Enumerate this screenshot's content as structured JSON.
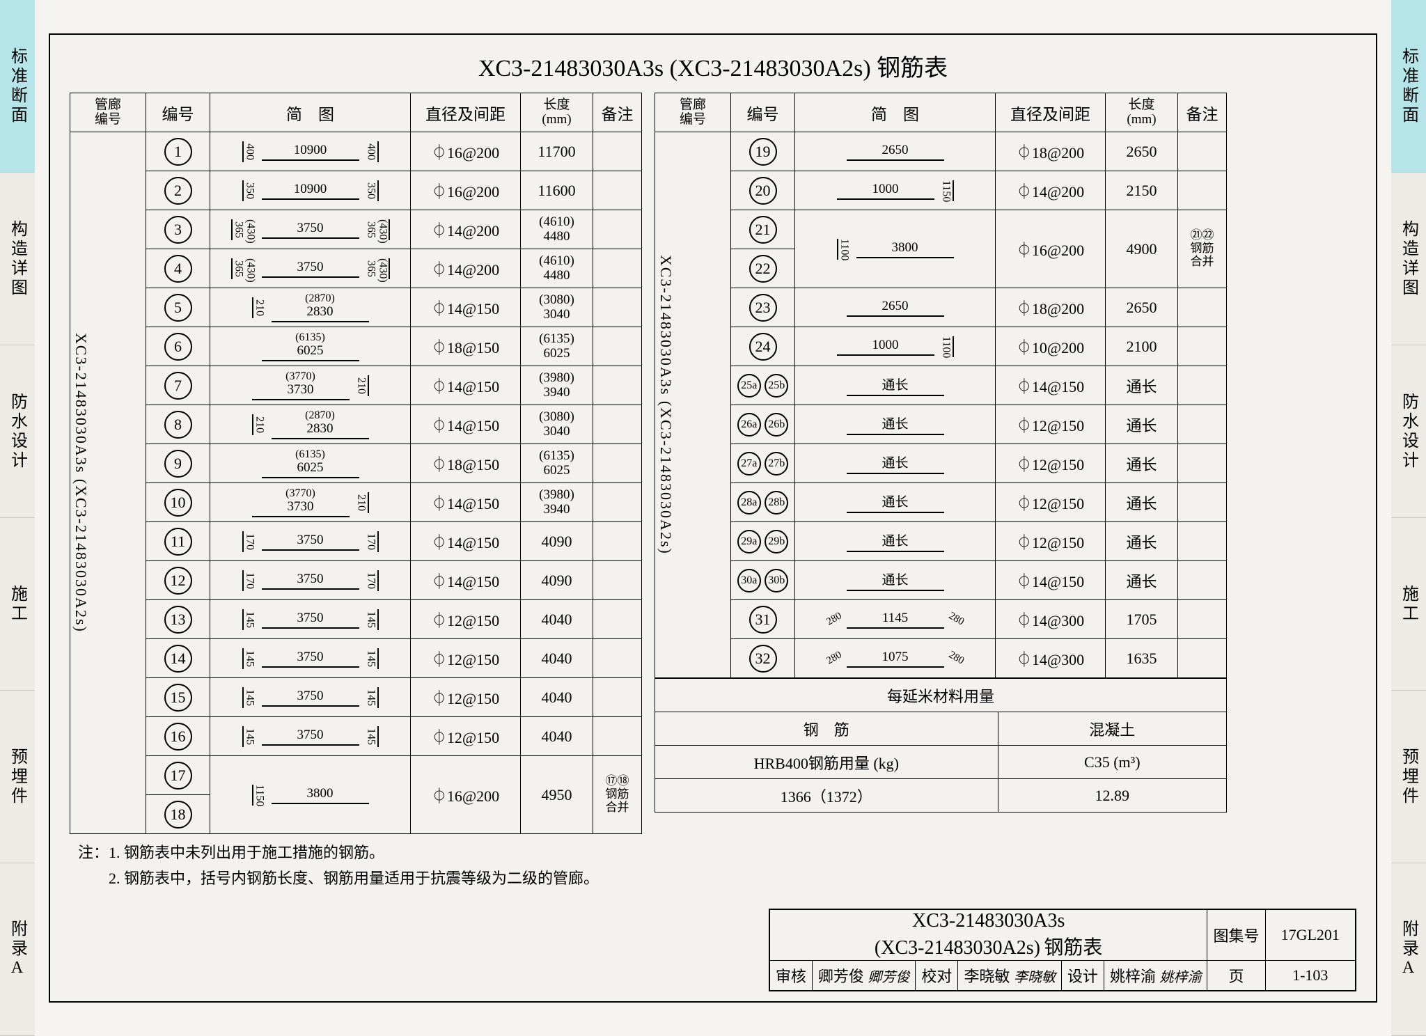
{
  "tabs": [
    "标准断面",
    "构造详图",
    "防水设计",
    "施工",
    "预埋件",
    "附录A"
  ],
  "title": "XC3-21483030A3s (XC3-21483030A2s) 钢筋表",
  "headers": {
    "corridor": "管廊编号",
    "num": "编号",
    "diagram": "简　图",
    "spec": "直径及间距",
    "len": "长度(mm)",
    "note": "备注"
  },
  "corridorLabel": "XC3-21483030A3s (XC3-21483030A2s)",
  "left_rows": [
    {
      "n": "1",
      "diag": {
        "main": "10900",
        "l": "400",
        "r": "400"
      },
      "spec": "⏀16@200",
      "len": "11700"
    },
    {
      "n": "2",
      "diag": {
        "main": "10900",
        "l": "350",
        "r": "350"
      },
      "spec": "⏀16@200",
      "len": "11600"
    },
    {
      "n": "3",
      "diag": {
        "main": "3750",
        "l": "365",
        "r": "365",
        "lx": "(430)",
        "rx": "(430)"
      },
      "spec": "⏀14@200",
      "len": "(4610)\n4480"
    },
    {
      "n": "4",
      "diag": {
        "main": "3750",
        "l": "365",
        "r": "365",
        "lx": "(430)",
        "rx": "(430)"
      },
      "spec": "⏀14@200",
      "len": "(4610)\n4480"
    },
    {
      "n": "5",
      "diag": {
        "above": "(2870)",
        "main": "2830",
        "l": "210"
      },
      "spec": "⏀14@150",
      "len": "(3080)\n3040"
    },
    {
      "n": "6",
      "diag": {
        "above": "(6135)",
        "main": "6025"
      },
      "spec": "⏀18@150",
      "len": "(6135)\n6025"
    },
    {
      "n": "7",
      "diag": {
        "above": "(3770)",
        "main": "3730",
        "r": "210"
      },
      "spec": "⏀14@150",
      "len": "(3980)\n3940"
    },
    {
      "n": "8",
      "diag": {
        "above": "(2870)",
        "main": "2830",
        "l": "210"
      },
      "spec": "⏀14@150",
      "len": "(3080)\n3040"
    },
    {
      "n": "9",
      "diag": {
        "above": "(6135)",
        "main": "6025"
      },
      "spec": "⏀18@150",
      "len": "(6135)\n6025"
    },
    {
      "n": "10",
      "diag": {
        "above": "(3770)",
        "main": "3730",
        "r": "210"
      },
      "spec": "⏀14@150",
      "len": "(3980)\n3940"
    },
    {
      "n": "11",
      "diag": {
        "main": "3750",
        "l": "170",
        "r": "170"
      },
      "spec": "⏀14@150",
      "len": "4090"
    },
    {
      "n": "12",
      "diag": {
        "main": "3750",
        "l": "170",
        "r": "170"
      },
      "spec": "⏀14@150",
      "len": "4090"
    },
    {
      "n": "13",
      "diag": {
        "main": "3750",
        "l": "145",
        "r": "145"
      },
      "spec": "⏀12@150",
      "len": "4040"
    },
    {
      "n": "14",
      "diag": {
        "main": "3750",
        "l": "145",
        "r": "145"
      },
      "spec": "⏀12@150",
      "len": "4040"
    },
    {
      "n": "15",
      "diag": {
        "main": "3750",
        "l": "145",
        "r": "145"
      },
      "spec": "⏀12@150",
      "len": "4040"
    },
    {
      "n": "16",
      "diag": {
        "main": "3750",
        "l": "145",
        "r": "145"
      },
      "spec": "⏀12@150",
      "len": "4040"
    }
  ],
  "left_merged": {
    "nums": [
      "17",
      "18"
    ],
    "diag": {
      "main": "3800",
      "l": "1150"
    },
    "spec": "⏀16@200",
    "len": "4950",
    "note": "⑰⑱\n钢筋\n合并"
  },
  "right_rows": [
    {
      "n": "19",
      "diag": {
        "main": "2650"
      },
      "spec": "⏀18@200",
      "len": "2650"
    },
    {
      "n": "20",
      "diag": {
        "main": "1000",
        "r": "1150"
      },
      "spec": "⏀14@200",
      "len": "2150"
    },
    {
      "n": "23",
      "diag": {
        "main": "2650"
      },
      "spec": "⏀18@200",
      "len": "2650"
    },
    {
      "n": "24",
      "diag": {
        "main": "1000",
        "r": "1100"
      },
      "spec": "⏀10@200",
      "len": "2100"
    },
    {
      "pair": [
        "25a",
        "25b"
      ],
      "diag": {
        "main": "通长"
      },
      "spec": "⏀14@150",
      "len": "通长"
    },
    {
      "pair": [
        "26a",
        "26b"
      ],
      "diag": {
        "main": "通长"
      },
      "spec": "⏀12@150",
      "len": "通长"
    },
    {
      "pair": [
        "27a",
        "27b"
      ],
      "diag": {
        "main": "通长"
      },
      "spec": "⏀12@150",
      "len": "通长"
    },
    {
      "pair": [
        "28a",
        "28b"
      ],
      "diag": {
        "main": "通长"
      },
      "spec": "⏀12@150",
      "len": "通长"
    },
    {
      "pair": [
        "29a",
        "29b"
      ],
      "diag": {
        "main": "通长"
      },
      "spec": "⏀12@150",
      "len": "通长"
    },
    {
      "pair": [
        "30a",
        "30b"
      ],
      "diag": {
        "main": "通长"
      },
      "spec": "⏀14@150",
      "len": "通长"
    },
    {
      "n": "31",
      "diag": {
        "main": "1145",
        "hook": "280"
      },
      "spec": "⏀14@300",
      "len": "1705"
    },
    {
      "n": "32",
      "diag": {
        "main": "1075",
        "hook": "280"
      },
      "spec": "⏀14@300",
      "len": "1635"
    }
  ],
  "right_merged": {
    "nums": [
      "21",
      "22"
    ],
    "diag": {
      "main": "3800",
      "l": "1100"
    },
    "spec": "⏀16@200",
    "len": "4900",
    "note": "㉑㉒\n钢筋\n合并"
  },
  "materials": {
    "title": "每延米材料用量",
    "steel": "钢　筋",
    "concrete": "混凝土",
    "steel_label": "HRB400钢筋用量 (kg)",
    "concrete_label": "C35 (m³)",
    "steel_val": "1366（1372）",
    "concrete_val": "12.89"
  },
  "notes": {
    "prefix": "注：",
    "n1": "1. 钢筋表中未列出用于施工措施的钢筋。",
    "n2": "2. 钢筋表中，括号内钢筋长度、钢筋用量适用于抗震等级为二级的管廊。"
  },
  "title_block": {
    "main1": "XC3-21483030A3s",
    "main2": "(XC3-21483030A2s)",
    "suffix": "钢筋表",
    "atlas_l": "图集号",
    "atlas_v": "17GL201",
    "review_l": "审核",
    "review_n": "卿芳俊",
    "check_l": "校对",
    "check_n": "李晓敏",
    "design_l": "设计",
    "design_n": "姚梓渝",
    "page_l": "页",
    "page_v": "1-103"
  }
}
